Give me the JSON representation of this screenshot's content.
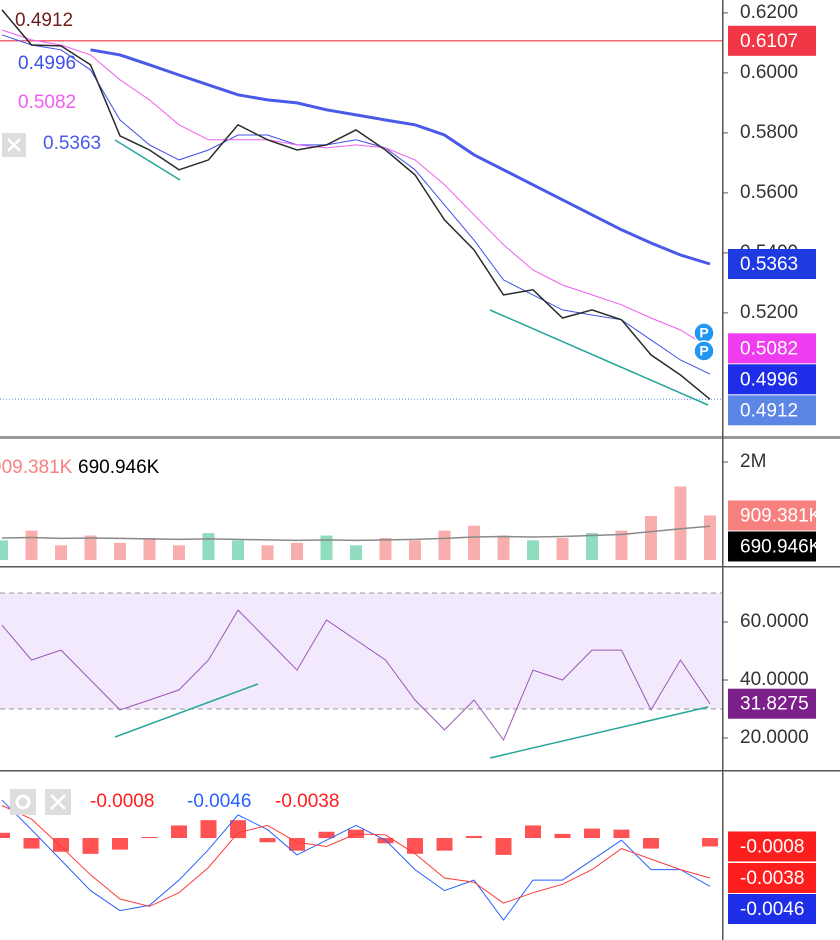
{
  "price_panel": {
    "ylim": [
      0.4793,
      0.6243
    ],
    "yticks": [
      {
        "value": 0.62,
        "label": "0.6200"
      },
      {
        "value": 0.6,
        "label": "0.6000"
      },
      {
        "value": 0.58,
        "label": "0.5800"
      },
      {
        "value": 0.56,
        "label": "0.5600"
      },
      {
        "value": 0.54,
        "label": "0.5400"
      },
      {
        "value": 0.52,
        "label": "0.5200"
      }
    ],
    "hline": {
      "value": 0.6107,
      "color": "#f23645"
    },
    "close": {
      "value": 0.4912,
      "color": "#2b2b2b",
      "tag_color": "#5b86e5",
      "legend_color": "#6d1f1f",
      "values": [
        0.621,
        0.6093,
        0.609,
        0.6027,
        0.579,
        0.5743,
        0.5677,
        0.571,
        0.5827,
        0.5777,
        0.5743,
        0.576,
        0.581,
        0.5743,
        0.566,
        0.551,
        0.541,
        0.526,
        0.5277,
        0.5183,
        0.521,
        0.5177,
        0.506,
        0.4993,
        0.4912
      ]
    },
    "lines": [
      {
        "value": 0.4996,
        "color": "#3f51e8",
        "tag_color": "#1e2ee8",
        "width": 1,
        "values": [
          0.6127,
          0.6093,
          0.6077,
          0.601,
          0.5843,
          0.576,
          0.571,
          0.5743,
          0.5793,
          0.5793,
          0.576,
          0.576,
          0.5777,
          0.575,
          0.5677,
          0.556,
          0.5443,
          0.531,
          0.526,
          0.521,
          0.5193,
          0.5177,
          0.511,
          0.5043,
          0.4996
        ]
      },
      {
        "value": 0.5082,
        "color": "#f05cf0",
        "tag_color": "#f03cf0",
        "width": 1,
        "values": [
          0.6143,
          0.611,
          0.6093,
          0.606,
          0.5977,
          0.591,
          0.5827,
          0.5777,
          0.5777,
          0.5777,
          0.576,
          0.575,
          0.576,
          0.575,
          0.571,
          0.5627,
          0.5527,
          0.5427,
          0.5343,
          0.5293,
          0.526,
          0.5227,
          0.5183,
          0.5143,
          0.5082
        ]
      },
      {
        "value": 0.5363,
        "color": "#4a5ae8",
        "tag_color": "#1e3ae0",
        "width": 3,
        "values": [
          null,
          null,
          null,
          0.6077,
          0.606,
          0.6027,
          0.5993,
          0.596,
          0.5927,
          0.591,
          0.59,
          0.5877,
          0.586,
          0.5843,
          0.5827,
          0.5793,
          0.5727,
          0.5677,
          0.5627,
          0.5577,
          0.5527,
          0.5477,
          0.5433,
          0.5393,
          0.5363
        ]
      }
    ],
    "markers": [
      "P",
      "P"
    ]
  },
  "volume_panel": {
    "ylim": [
      0,
      2450000
    ],
    "yticks": [
      {
        "value": 2000000,
        "label": "2M"
      }
    ],
    "up_color": "#8fdcbf",
    "down_color": "#f7aeac",
    "volume": {
      "value": 909381,
      "label": "909.381K",
      "tag_color": "#f7817f",
      "values": [
        400000,
        600000,
        300000,
        500000,
        350000,
        450000,
        300000,
        550000,
        400000,
        300000,
        350000,
        500000,
        300000,
        450000,
        400000,
        600000,
        700000,
        500000,
        400000,
        450000,
        550000,
        600000,
        900000,
        1500000,
        909381
      ]
    },
    "average": {
      "value": 690946,
      "label": "690.946K",
      "color": "#8a8a8a",
      "tag_color": "#000000",
      "values": [
        450000,
        460000,
        440000,
        450000,
        440000,
        430000,
        420000,
        430000,
        420000,
        410000,
        400000,
        410000,
        400000,
        410000,
        420000,
        440000,
        470000,
        480000,
        470000,
        480000,
        500000,
        520000,
        580000,
        640000,
        690946
      ]
    }
  },
  "rsi_panel": {
    "ylim": [
      8.97,
      77.93
    ],
    "yticks": [
      {
        "value": 60,
        "label": "60.0000"
      },
      {
        "value": 40,
        "label": "40.0000"
      },
      {
        "value": 20,
        "label": "20.0000"
      }
    ],
    "band": [
      30,
      70
    ],
    "band_color": "rgba(149,76,233,0.12)",
    "rsi": {
      "value": 31.8275,
      "color": "#9b59b6",
      "tag_color": "#7b1f8a",
      "values": [
        58.9,
        46.9,
        50.3,
        40,
        29.7,
        33.1,
        36.6,
        46.9,
        64.1,
        53.8,
        43.4,
        60.7,
        53.8,
        46.9,
        33.1,
        22.8,
        33.1,
        19.3,
        43.4,
        40,
        50.3,
        50.3,
        29.7,
        46.9,
        31.8275
      ]
    }
  },
  "macd_panel": {
    "ylim": [
      -0.0097,
      0.006
    ],
    "histogram": {
      "value": -0.0008,
      "color": "#ff5252",
      "tag_color": "#ff1e1e",
      "values": [
        0.0005,
        -0.001,
        -0.0013,
        -0.0015,
        -0.0011,
        0.0001,
        0.0012,
        0.0017,
        0.0017,
        -0.0004,
        -0.0012,
        0.0006,
        0.0008,
        -0.0005,
        -0.0015,
        -0.0012,
        0.0002,
        -0.0016,
        0.0012,
        0.0004,
        0.0009,
        0.0008,
        -0.001,
        0,
        -0.0008
      ]
    },
    "macd": {
      "value": -0.0046,
      "color": "#2962ff",
      "tag_color": "#1e2ee8",
      "values": [
        0.0036,
        0.0008,
        -0.0021,
        -0.005,
        -0.0069,
        -0.0064,
        -0.004,
        -0.0011,
        0.0022,
        0.0008,
        -0.0016,
        -0.0002,
        0.0012,
        -0.0002,
        -0.003,
        -0.005,
        -0.004,
        -0.0078,
        -0.004,
        -0.004,
        -0.0021,
        -0.0002,
        -0.003,
        -0.003,
        -0.0046
      ]
    },
    "signal": {
      "value": -0.0038,
      "color": "#ff3b3b",
      "tag_color": "#ff1e1e",
      "values": [
        0.0031,
        0.0018,
        -0.0008,
        -0.0035,
        -0.0058,
        -0.0065,
        -0.0052,
        -0.0028,
        0.0005,
        0.0012,
        -0.0004,
        -0.0008,
        0.0004,
        0.0003,
        -0.0015,
        -0.0038,
        -0.0042,
        -0.0062,
        -0.0052,
        -0.0044,
        -0.003,
        -0.001,
        -0.002,
        -0.003,
        -0.0038
      ]
    }
  }
}
